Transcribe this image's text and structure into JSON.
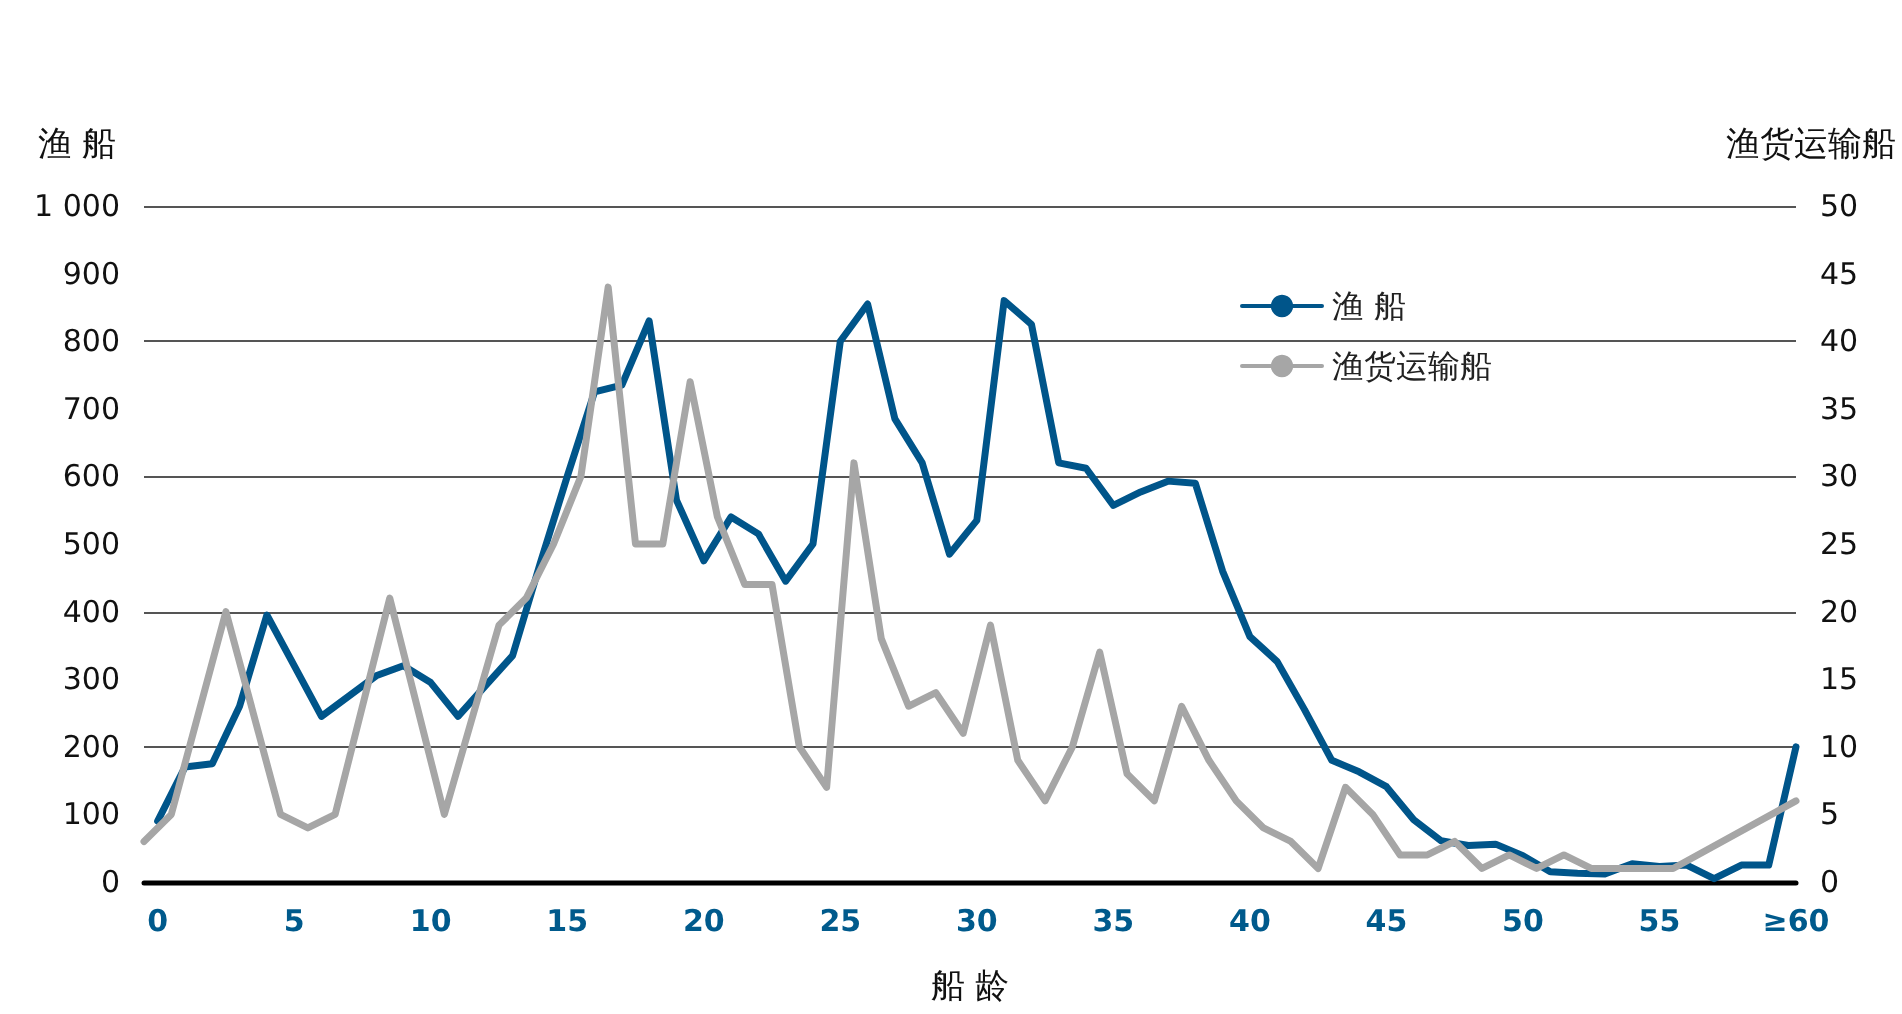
{
  "chart_data": {
    "type": "line",
    "xlabel": "船 龄",
    "ylabel": "渔 船",
    "y2label": "渔货运输船",
    "xlim": [
      -0.5,
      60
    ],
    "xticks": [
      0,
      5,
      10,
      15,
      20,
      25,
      30,
      35,
      40,
      45,
      50,
      55,
      {
        "value": 60,
        "label": "≥60"
      }
    ],
    "ylim": [
      0,
      1000
    ],
    "yticks": [
      0,
      100,
      200,
      300,
      400,
      500,
      600,
      700,
      800,
      900,
      {
        "value": 1000,
        "label": "1 000"
      }
    ],
    "y2lim": [
      0,
      50
    ],
    "y2ticks": [
      0,
      5,
      10,
      15,
      20,
      25,
      30,
      35,
      40,
      45,
      50
    ],
    "grid": "y",
    "legend": "top right",
    "line_style": "solid",
    "series": [
      {
        "name": "渔 船",
        "color": "#00558a",
        "x": [
          0,
          1,
          2,
          3,
          4,
          5,
          6,
          7,
          8,
          9,
          10,
          11,
          12,
          13,
          14,
          15,
          16,
          17,
          18,
          19,
          20,
          21,
          22,
          23,
          24,
          25,
          26,
          27,
          28,
          29,
          30,
          31,
          32,
          33,
          34,
          35,
          36,
          37,
          38,
          39,
          40,
          41,
          42,
          43,
          44,
          45,
          46,
          47,
          48,
          49,
          50,
          51,
          52,
          53,
          54,
          55,
          56,
          57,
          58,
          59,
          60
        ],
        "values": [
          90,
          170,
          175,
          260,
          395,
          320,
          245,
          275,
          305,
          320,
          295,
          245,
          290,
          335,
          470,
          600,
          725,
          735,
          830,
          565,
          475,
          540,
          515,
          445,
          500,
          800,
          855,
          685,
          620,
          485,
          535,
          860,
          825,
          620,
          612,
          557,
          577,
          593,
          590,
          460,
          363,
          326,
          255,
          180,
          163,
          141,
          92,
          61,
          54,
          56,
          39,
          15,
          13,
          12,
          27,
          23,
          25,
          5,
          25,
          25,
          200
        ]
      },
      {
        "name": "渔货运输船",
        "color": "#a6a6a6",
        "axis": "y2",
        "x": [
          -0.5,
          0.5,
          2.5,
          4.5,
          5.5,
          6.5,
          8.5,
          10.5,
          12.5,
          13.5,
          14.5,
          15.5,
          16.5,
          17.5,
          18.5,
          19.5,
          20.5,
          21.5,
          22.5,
          23.5,
          24.5,
          25.5,
          26.5,
          27.5,
          28.5,
          29.5,
          30.5,
          31.5,
          32.5,
          33.5,
          34.5,
          35.5,
          36.5,
          37.5,
          38.5,
          39.5,
          40.5,
          41.5,
          42.5,
          43.5,
          44.5,
          45.5,
          46.5,
          47.5,
          48.5,
          49.5,
          50.5,
          51.5,
          52.5,
          53.5,
          54.5,
          55.5,
          60
        ],
        "values": [
          3,
          5,
          20,
          5,
          4,
          5,
          21,
          5,
          19,
          21,
          25,
          30,
          44,
          25,
          25,
          37,
          27,
          22,
          22,
          10,
          7,
          31,
          18,
          13,
          14,
          11,
          19,
          9,
          6,
          10,
          17,
          8,
          6,
          13,
          9,
          6,
          4,
          3,
          1,
          7,
          5,
          2,
          2,
          3,
          1,
          2,
          1,
          2,
          1,
          1,
          1,
          1,
          6
        ]
      }
    ]
  }
}
